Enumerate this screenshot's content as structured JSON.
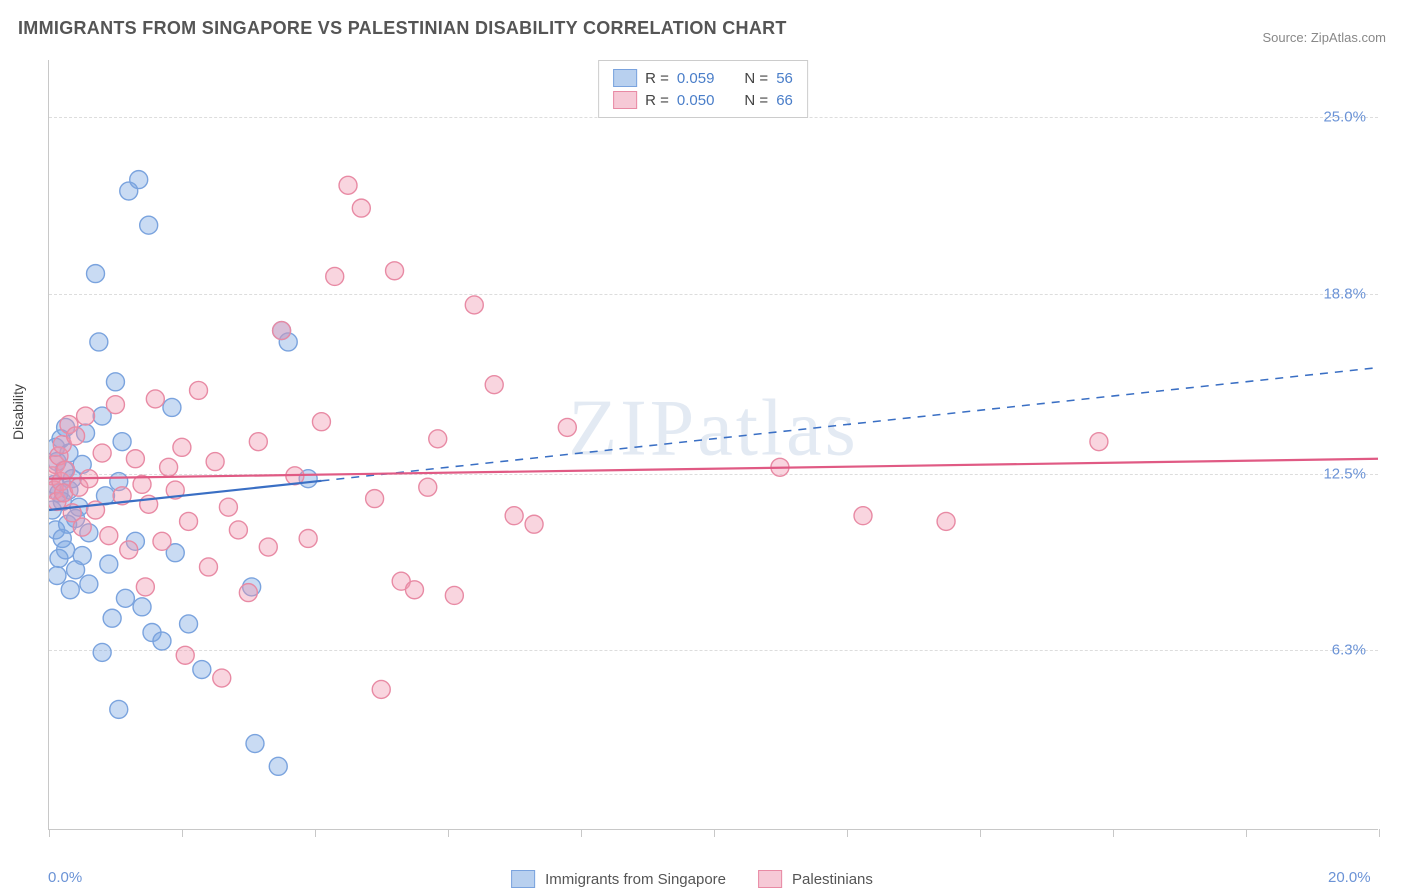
{
  "title": "IMMIGRANTS FROM SINGAPORE VS PALESTINIAN DISABILITY CORRELATION CHART",
  "source": "Source: ZipAtlas.com",
  "ylabel": "Disability",
  "watermark": "ZIPatlas",
  "chart": {
    "type": "scatter-with-trendlines",
    "background_color": "#ffffff",
    "grid_color": "#dddddd",
    "axis_color": "#c8c8c8",
    "label_color": "#6b93d6",
    "xlim": [
      0,
      20
    ],
    "ylim": [
      0,
      27
    ],
    "x_ticks_minor": [
      0,
      2,
      4,
      6,
      8,
      10,
      12,
      14,
      16,
      18,
      20
    ],
    "x_ticks_labels": [
      {
        "v": 0,
        "label": "0.0%"
      },
      {
        "v": 20,
        "label": "20.0%"
      }
    ],
    "y_grid": [
      {
        "v": 6.3,
        "label": "6.3%"
      },
      {
        "v": 12.5,
        "label": "12.5%"
      },
      {
        "v": 18.8,
        "label": "18.8%"
      },
      {
        "v": 25.0,
        "label": "25.0%"
      }
    ],
    "marker_radius": 9,
    "marker_stroke_width": 1.4,
    "series": [
      {
        "name": "Immigrants from Singapore",
        "fill": "rgba(120,165,225,0.40)",
        "stroke": "#7aa3de",
        "swatch_fill": "#b8d0ef",
        "swatch_border": "#7aa3de",
        "R": "0.059",
        "N": "56",
        "trend": {
          "x1": 0,
          "y1": 11.2,
          "x2": 20,
          "y2": 16.2,
          "solid_until_x": 4.1,
          "color": "#3a6fc4",
          "width": 2.2
        },
        "points": [
          [
            0.05,
            11.2
          ],
          [
            0.08,
            12.1
          ],
          [
            0.1,
            10.5
          ],
          [
            0.1,
            13.4
          ],
          [
            0.12,
            8.9
          ],
          [
            0.12,
            12.9
          ],
          [
            0.15,
            11.8
          ],
          [
            0.15,
            9.5
          ],
          [
            0.18,
            13.7
          ],
          [
            0.2,
            10.2
          ],
          [
            0.2,
            11.5
          ],
          [
            0.23,
            12.6
          ],
          [
            0.25,
            9.8
          ],
          [
            0.25,
            14.1
          ],
          [
            0.28,
            10.7
          ],
          [
            0.3,
            11.9
          ],
          [
            0.3,
            13.2
          ],
          [
            0.32,
            8.4
          ],
          [
            0.35,
            12.3
          ],
          [
            0.4,
            10.9
          ],
          [
            0.4,
            9.1
          ],
          [
            0.45,
            11.3
          ],
          [
            0.5,
            12.8
          ],
          [
            0.5,
            9.6
          ],
          [
            0.55,
            13.9
          ],
          [
            0.6,
            10.4
          ],
          [
            0.6,
            8.6
          ],
          [
            0.7,
            19.5
          ],
          [
            0.75,
            17.1
          ],
          [
            0.8,
            14.5
          ],
          [
            0.85,
            11.7
          ],
          [
            0.9,
            9.3
          ],
          [
            0.95,
            7.4
          ],
          [
            1.0,
            15.7
          ],
          [
            1.05,
            12.2
          ],
          [
            1.1,
            13.6
          ],
          [
            1.15,
            8.1
          ],
          [
            1.2,
            22.4
          ],
          [
            1.35,
            22.8
          ],
          [
            1.3,
            10.1
          ],
          [
            1.4,
            7.8
          ],
          [
            1.5,
            21.2
          ],
          [
            1.55,
            6.9
          ],
          [
            1.7,
            6.6
          ],
          [
            1.85,
            14.8
          ],
          [
            1.9,
            9.7
          ],
          [
            2.1,
            7.2
          ],
          [
            2.3,
            5.6
          ],
          [
            3.05,
            8.5
          ],
          [
            3.1,
            3.0
          ],
          [
            3.45,
            2.2
          ],
          [
            3.5,
            17.5
          ],
          [
            3.6,
            17.1
          ],
          [
            3.9,
            12.3
          ],
          [
            1.05,
            4.2
          ],
          [
            0.8,
            6.2
          ]
        ]
      },
      {
        "name": "Palestinians",
        "fill": "rgba(240,150,175,0.40)",
        "stroke": "#e88aa4",
        "swatch_fill": "#f6c9d6",
        "swatch_border": "#e88aa4",
        "R": "0.050",
        "N": "66",
        "trend": {
          "x1": 0,
          "y1": 12.3,
          "x2": 20,
          "y2": 13.0,
          "solid_until_x": 20,
          "color": "#e05a84",
          "width": 2.2
        },
        "points": [
          [
            0.05,
            12.4
          ],
          [
            0.08,
            11.9
          ],
          [
            0.1,
            12.8
          ],
          [
            0.12,
            11.5
          ],
          [
            0.15,
            13.1
          ],
          [
            0.18,
            12.2
          ],
          [
            0.2,
            13.5
          ],
          [
            0.22,
            11.8
          ],
          [
            0.25,
            12.6
          ],
          [
            0.3,
            14.2
          ],
          [
            0.35,
            11.1
          ],
          [
            0.4,
            13.8
          ],
          [
            0.45,
            12.0
          ],
          [
            0.5,
            10.6
          ],
          [
            0.55,
            14.5
          ],
          [
            0.6,
            12.3
          ],
          [
            0.7,
            11.2
          ],
          [
            0.8,
            13.2
          ],
          [
            0.9,
            10.3
          ],
          [
            1.0,
            14.9
          ],
          [
            1.1,
            11.7
          ],
          [
            1.2,
            9.8
          ],
          [
            1.3,
            13.0
          ],
          [
            1.4,
            12.1
          ],
          [
            1.5,
            11.4
          ],
          [
            1.6,
            15.1
          ],
          [
            1.7,
            10.1
          ],
          [
            1.8,
            12.7
          ],
          [
            1.9,
            11.9
          ],
          [
            2.0,
            13.4
          ],
          [
            2.1,
            10.8
          ],
          [
            2.25,
            15.4
          ],
          [
            2.4,
            9.2
          ],
          [
            2.5,
            12.9
          ],
          [
            2.7,
            11.3
          ],
          [
            2.85,
            10.5
          ],
          [
            3.0,
            8.3
          ],
          [
            3.15,
            13.6
          ],
          [
            3.3,
            9.9
          ],
          [
            3.5,
            17.5
          ],
          [
            3.7,
            12.4
          ],
          [
            3.9,
            10.2
          ],
          [
            4.1,
            14.3
          ],
          [
            4.3,
            19.4
          ],
          [
            4.5,
            22.6
          ],
          [
            4.7,
            21.8
          ],
          [
            4.9,
            11.6
          ],
          [
            5.0,
            4.9
          ],
          [
            5.2,
            19.6
          ],
          [
            5.3,
            8.7
          ],
          [
            5.5,
            8.4
          ],
          [
            5.7,
            12.0
          ],
          [
            5.85,
            13.7
          ],
          [
            6.1,
            8.2
          ],
          [
            6.4,
            18.4
          ],
          [
            6.7,
            15.6
          ],
          [
            7.0,
            11.0
          ],
          [
            7.3,
            10.7
          ],
          [
            7.8,
            14.1
          ],
          [
            11.0,
            12.7
          ],
          [
            12.25,
            11.0
          ],
          [
            13.5,
            10.8
          ],
          [
            15.8,
            13.6
          ],
          [
            2.05,
            6.1
          ],
          [
            2.6,
            5.3
          ],
          [
            1.45,
            8.5
          ]
        ]
      }
    ],
    "legend_top": {
      "rows": [
        {
          "swatch": 0,
          "R_label": "R =",
          "R_val": "0.059",
          "N_label": "N =",
          "N_val": "56"
        },
        {
          "swatch": 1,
          "R_label": "R =",
          "R_val": "0.050",
          "N_label": "N =",
          "N_val": "66"
        }
      ]
    },
    "legend_bottom": {
      "items": [
        {
          "swatch": 0,
          "label": "Immigrants from Singapore"
        },
        {
          "swatch": 1,
          "label": "Palestinians"
        }
      ]
    }
  }
}
